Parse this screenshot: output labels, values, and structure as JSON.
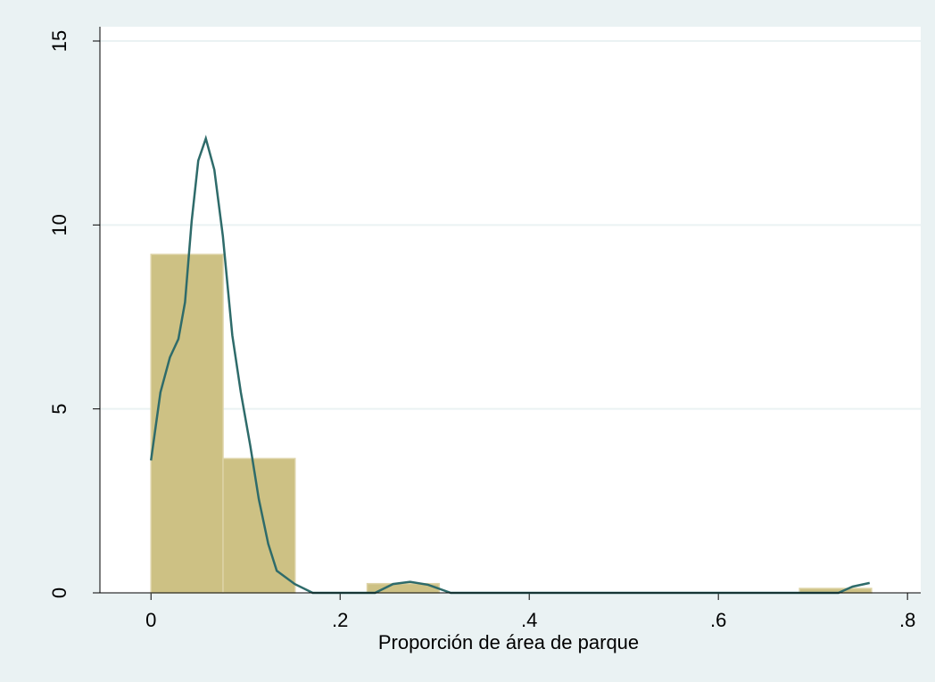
{
  "chart_data": {
    "type": "histogram",
    "xlabel": "Proporción de área de parque",
    "bins": [
      0,
      0.0762,
      0.1524,
      0.2286,
      0.3048,
      0.381,
      0.4572,
      0.5334,
      0.6096,
      0.6858,
      0.762
    ],
    "values": [
      9.2,
      3.65,
      0,
      0.25,
      0,
      0,
      0,
      0,
      0,
      0.12
    ],
    "color": "#cdc184",
    "kde": {
      "color": "#2e6b6a",
      "x": [
        0,
        0.01,
        0.02,
        0.029,
        0.036,
        0.043,
        0.05,
        0.058,
        0.067,
        0.076,
        0.086,
        0.095,
        0.105,
        0.114,
        0.124,
        0.133,
        0.152,
        0.171,
        0.237,
        0.256,
        0.274,
        0.293,
        0.317,
        0.727,
        0.742,
        0.76
      ],
      "y": [
        3.6,
        5.45,
        6.4,
        6.9,
        7.9,
        10.1,
        11.75,
        12.35,
        11.5,
        9.7,
        7.0,
        5.45,
        4.0,
        2.55,
        1.33,
        0.6,
        0.24,
        0,
        0,
        0.24,
        0.3,
        0.22,
        0,
        0,
        0.17,
        0.27
      ]
    },
    "xlim": [
      -0.054,
      0.814
    ],
    "ylim": [
      0,
      15
    ],
    "xticks": [
      0,
      {
        "value": 0.2,
        "label": ".2"
      },
      {
        "value": 0.4,
        "label": ".4"
      },
      {
        "value": 0.6,
        "label": ".6"
      },
      {
        "value": 0.8,
        "label": ".8"
      }
    ],
    "yticks": [
      0,
      5,
      10,
      15
    ],
    "grid": true
  }
}
